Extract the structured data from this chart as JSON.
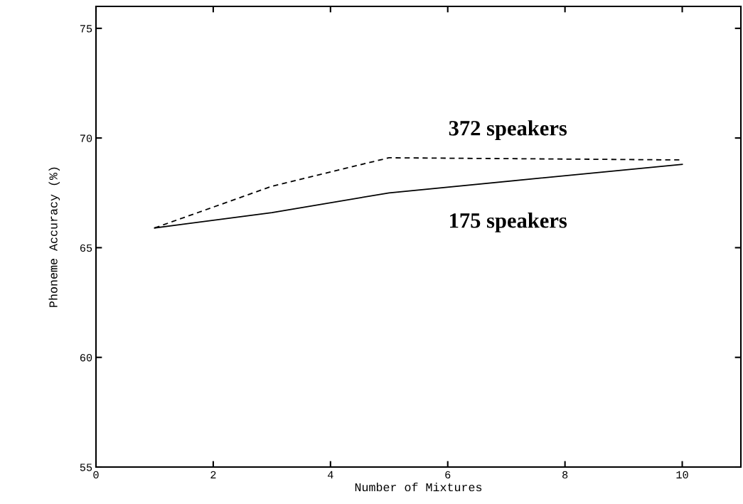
{
  "chart_data": {
    "type": "line",
    "xlabel": "Number of Mixtures",
    "ylabel": "Phoneme Accuracy (%)",
    "xlim": [
      0,
      11
    ],
    "xticks": [
      0,
      2,
      4,
      6,
      8,
      10
    ],
    "ylim": [
      55,
      76
    ],
    "yticks": [
      55,
      60,
      65,
      70,
      75
    ],
    "grid": false,
    "legend": false,
    "series": [
      {
        "name": "372 speakers",
        "color": "#000000",
        "line_style": "dashed",
        "x": [
          1,
          3,
          5,
          10
        ],
        "values": [
          65.9,
          67.8,
          69.1,
          69.0
        ]
      },
      {
        "name": "175 speakers",
        "color": "#000000",
        "line_style": "solid",
        "x": [
          1,
          3,
          5,
          10
        ],
        "values": [
          65.9,
          66.6,
          67.5,
          68.8
        ]
      }
    ]
  }
}
